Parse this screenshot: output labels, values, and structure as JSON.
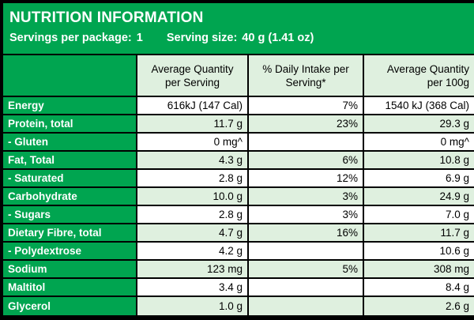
{
  "header": {
    "title": "NUTRITION INFORMATION",
    "servings_label": "Servings per package:",
    "servings_value": "1",
    "serving_size_label": "Serving size:",
    "serving_size_value": "40 g (1.41 oz)"
  },
  "columns": {
    "per_serving_line1": "Average Quantity",
    "per_serving_line2": "per Serving",
    "daily_intake_line1": "% Daily Intake per",
    "daily_intake_line2": "Serving*",
    "per_100g_line1": "Average Quantity",
    "per_100g_line2": "per 100g"
  },
  "rows": [
    {
      "name": "Energy",
      "per_serving": "616kJ (147 Cal)",
      "daily_intake": "7%",
      "per_100g": "1540 kJ (368 Cal)"
    },
    {
      "name": "Protein, total",
      "per_serving": "11.7 g",
      "daily_intake": "23%",
      "per_100g": "29.3 g"
    },
    {
      "name": " - Gluten",
      "per_serving": "0 mg^",
      "daily_intake": "",
      "per_100g": "0 mg^"
    },
    {
      "name": "Fat, Total",
      "per_serving": "4.3 g",
      "daily_intake": "6%",
      "per_100g": "10.8 g"
    },
    {
      "name": " - Saturated",
      "per_serving": "2.8 g",
      "daily_intake": "12%",
      "per_100g": "6.9 g"
    },
    {
      "name": "Carbohydrate",
      "per_serving": "10.0 g",
      "daily_intake": "3%",
      "per_100g": "24.9 g"
    },
    {
      "name": " - Sugars",
      "per_serving": "2.8 g",
      "daily_intake": "3%",
      "per_100g": "7.0 g"
    },
    {
      "name": "Dietary Fibre, total",
      "per_serving": "4.7 g",
      "daily_intake": "16%",
      "per_100g": "11.7 g"
    },
    {
      "name": " - Polydextrose",
      "per_serving": "4.2 g",
      "daily_intake": "",
      "per_100g": "10.6 g"
    },
    {
      "name": "Sodium",
      "per_serving": "123 mg",
      "daily_intake": "5%",
      "per_100g": "308 mg"
    },
    {
      "name": "Maltitol",
      "per_serving": "3.4 g",
      "daily_intake": "",
      "per_100g": "8.4 g"
    },
    {
      "name": "Glycerol",
      "per_serving": "1.0 g",
      "daily_intake": "",
      "per_100g": "2.6 g"
    }
  ],
  "colors": {
    "green": "#00a550",
    "light_green": "#dff0df",
    "white": "#ffffff",
    "border": "#000000"
  }
}
